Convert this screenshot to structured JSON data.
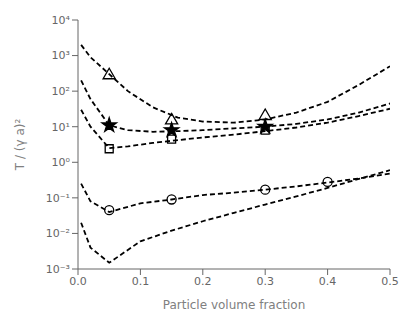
{
  "chart_data": {
    "type": "line",
    "title": "",
    "xlabel": "Particle volume fraction",
    "ylabel": "T / (γ a)²",
    "log": "y",
    "grid": false,
    "xlim": [
      0,
      0.5
    ],
    "xticks": [
      {
        "value": 0,
        "label": "0.0"
      },
      0.1,
      0.2,
      0.3,
      0.4,
      0.5
    ],
    "ylim": [
      0.001,
      10000
    ],
    "yticks": [
      {
        "value": 0.001,
        "label": "10⁻³"
      },
      {
        "value": 0.01,
        "label": "10⁻²"
      },
      {
        "value": 0.1,
        "label": "10⁻¹"
      },
      {
        "value": 1,
        "label": "10⁰"
      },
      {
        "value": 10,
        "label": "10¹"
      },
      {
        "value": 100,
        "label": "10²"
      },
      {
        "value": 1000,
        "label": "10³"
      },
      {
        "value": 10000,
        "label": "10⁴"
      }
    ],
    "series": [
      {
        "type": "line",
        "color": "black",
        "line_style": "dashed",
        "x": [
          0.005,
          0.02,
          0.05,
          0.08,
          0.12,
          0.16,
          0.2,
          0.25,
          0.3,
          0.35,
          0.4,
          0.45,
          0.5
        ],
        "values": [
          2000,
          900,
          300,
          100,
          35,
          18,
          14,
          13,
          16,
          25,
          50,
          150,
          500
        ]
      },
      {
        "type": "line",
        "color": "black",
        "line_style": "dashed",
        "x": [
          0.005,
          0.02,
          0.05,
          0.08,
          0.12,
          0.16,
          0.2,
          0.25,
          0.3,
          0.35,
          0.4,
          0.45,
          0.5
        ],
        "values": [
          200,
          60,
          11,
          8.0,
          7.2,
          7.5,
          8.0,
          9.0,
          10,
          12,
          16,
          25,
          45
        ]
      },
      {
        "type": "line",
        "color": "black",
        "line_style": "dashed",
        "x": [
          0.005,
          0.02,
          0.05,
          0.08,
          0.12,
          0.16,
          0.2,
          0.25,
          0.3,
          0.35,
          0.4,
          0.45,
          0.5
        ],
        "values": [
          30,
          10,
          2.5,
          2.8,
          3.5,
          4.2,
          5.0,
          6.0,
          7.5,
          9.5,
          13,
          20,
          32
        ]
      },
      {
        "type": "line",
        "color": "black",
        "line_style": "dashed",
        "x": [
          0.005,
          0.02,
          0.05,
          0.1,
          0.15,
          0.2,
          0.25,
          0.3,
          0.35,
          0.4,
          0.45,
          0.5
        ],
        "values": [
          0.25,
          0.08,
          0.04,
          0.07,
          0.09,
          0.12,
          0.14,
          0.17,
          0.21,
          0.27,
          0.35,
          0.48
        ]
      },
      {
        "type": "line",
        "color": "black",
        "line_style": "dashed",
        "x": [
          0.005,
          0.02,
          0.05,
          0.1,
          0.15,
          0.2,
          0.25,
          0.3,
          0.35,
          0.4,
          0.45,
          0.5
        ],
        "values": [
          0.02,
          0.004,
          0.0015,
          0.006,
          0.012,
          0.022,
          0.038,
          0.065,
          0.11,
          0.19,
          0.34,
          0.6
        ]
      },
      {
        "type": "scatter",
        "color": "black",
        "marker": "triangle-open",
        "x": [
          0.05,
          0.15,
          0.3
        ],
        "values": [
          280,
          15,
          20
        ]
      },
      {
        "type": "scatter",
        "color": "black",
        "marker": "star",
        "x": [
          0.05,
          0.15,
          0.3
        ],
        "values": [
          11,
          8,
          10
        ]
      },
      {
        "type": "scatter",
        "color": "black",
        "marker": "square-open",
        "x": [
          0.05,
          0.15,
          0.3
        ],
        "values": [
          2.4,
          4.5,
          8
        ]
      },
      {
        "type": "scatter",
        "color": "black",
        "marker": "circle-open",
        "x": [
          0.05,
          0.15,
          0.3,
          0.4
        ],
        "values": [
          0.045,
          0.09,
          0.17,
          0.28
        ]
      }
    ]
  }
}
